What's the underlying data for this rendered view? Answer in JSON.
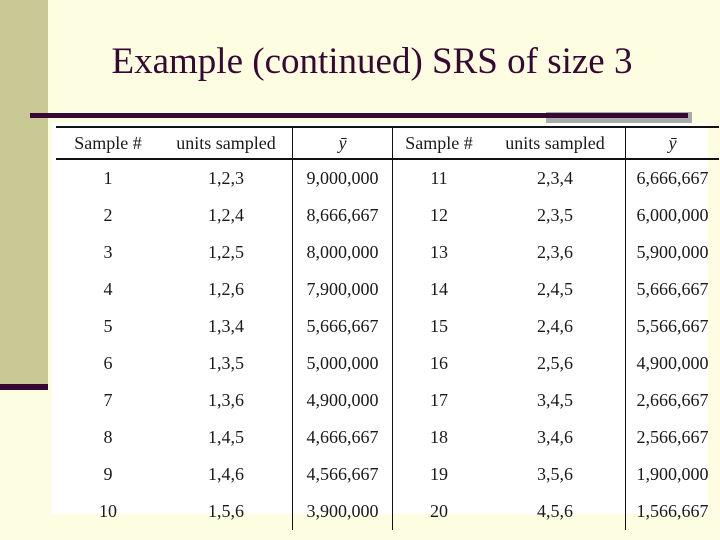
{
  "slide": {
    "title": "Example (continued) SRS of size 3",
    "colors": {
      "background": "#FDFDE1",
      "sidebar": "#C9C996",
      "accent": "#380835",
      "rule_shadow": "#ABABAB",
      "table_background": "#FFFFFF",
      "table_text": "#1A1A1A"
    }
  },
  "table": {
    "headers": [
      "Sample #",
      "units sampled",
      "ȳ",
      "Sample #",
      "units sampled",
      "ȳ"
    ],
    "rows": [
      [
        "1",
        "1,2,3",
        "9,000,000",
        "11",
        "2,3,4",
        "6,666,667"
      ],
      [
        "2",
        "1,2,4",
        "8,666,667",
        "12",
        "2,3,5",
        "6,000,000"
      ],
      [
        "3",
        "1,2,5",
        "8,000,000",
        "13",
        "2,3,6",
        "5,900,000"
      ],
      [
        "4",
        "1,2,6",
        "7,900,000",
        "14",
        "2,4,5",
        "5,666,667"
      ],
      [
        "5",
        "1,3,4",
        "5,666,667",
        "15",
        "2,4,6",
        "5,566,667"
      ],
      [
        "6",
        "1,3,5",
        "5,000,000",
        "16",
        "2,5,6",
        "4,900,000"
      ],
      [
        "7",
        "1,3,6",
        "4,900,000",
        "17",
        "3,4,5",
        "2,666,667"
      ],
      [
        "8",
        "1,4,5",
        "4,666,667",
        "18",
        "3,4,6",
        "2,566,667"
      ],
      [
        "9",
        "1,4,6",
        "4,566,667",
        "19",
        "3,5,6",
        "1,900,000"
      ],
      [
        "10",
        "1,5,6",
        "3,900,000",
        "20",
        "4,5,6",
        "1,566,667"
      ]
    ]
  }
}
